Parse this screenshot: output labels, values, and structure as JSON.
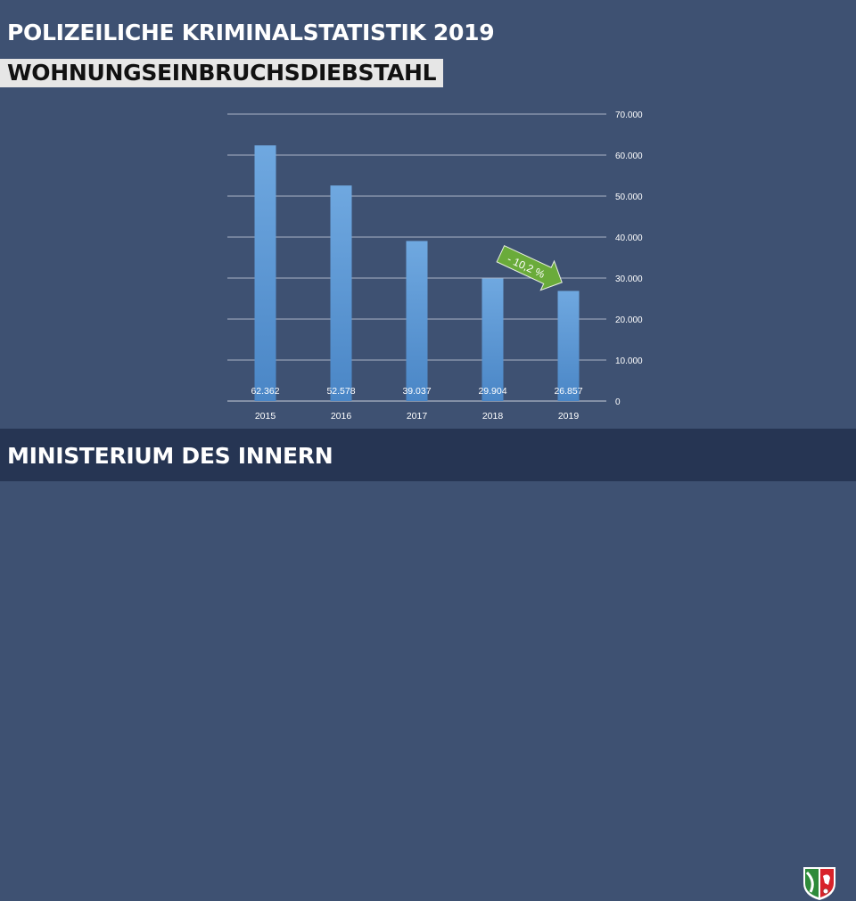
{
  "header": {
    "title": "POLIZEILICHE KRIMINALSTATISTIK 2019",
    "subtitle": "WOHNUNGSEINBRUCHSDIEBSTAHL"
  },
  "footer": {
    "text": "MINISTERIUM DES INNERN",
    "logo": "nrw-coat-of-arms-icon"
  },
  "colors": {
    "bar": "#5b9bd5",
    "arrow": "#6aab3a",
    "background": "#3e5172",
    "footer": "#263553"
  },
  "chart_data": {
    "type": "bar",
    "categories": [
      "2015",
      "2016",
      "2017",
      "2018",
      "2019"
    ],
    "values": [
      62362,
      52578,
      39037,
      29904,
      26857
    ],
    "data_labels": [
      "62.362",
      "52.578",
      "39.037",
      "29.904",
      "26.857"
    ],
    "yticks": [
      "0",
      "10.000",
      "20.000",
      "30.000",
      "40.000",
      "50.000",
      "60.000",
      "70.000"
    ],
    "ylim": [
      0,
      70000
    ],
    "y_axis_side": "right",
    "grid": true,
    "annotation": "- 10,2 %"
  }
}
